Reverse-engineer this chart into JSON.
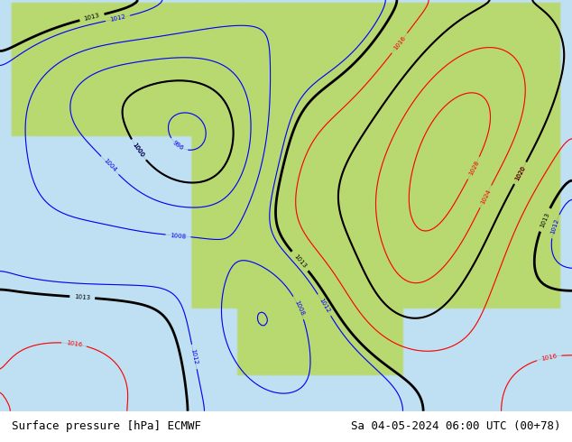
{
  "title_left": "Surface pressure [hPa] ECMWF",
  "title_right": "Sa 04-05-2024 06:00 UTC (00+78)",
  "background_color": "#d0e8a0",
  "land_color": "#b8d870",
  "ocean_color": "#c8e8f8",
  "fig_bg": "#ffffff",
  "bottom_bar_color": "#e8e8e8",
  "font_size_title": 9,
  "figsize": [
    6.34,
    4.9
  ],
  "dpi": 100
}
